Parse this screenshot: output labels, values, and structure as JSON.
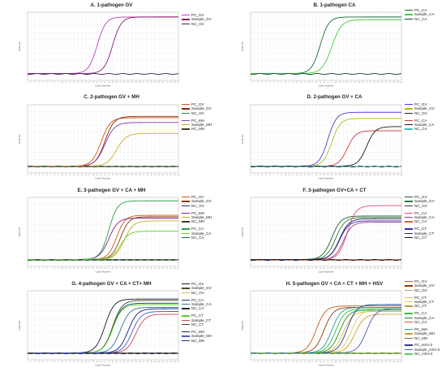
{
  "chart_data": [
    {
      "type": "line",
      "title": "A. 1-pathogen GV",
      "xlabel": "Cycle Number",
      "ylabel": "Delta Rn",
      "xlim": [
        1,
        40
      ],
      "ylim": [
        -1,
        9
      ],
      "series": [
        {
          "name": "PC_GV",
          "color": "#c040c0",
          "ct": 19,
          "plateau": 8.3,
          "rate": 0.45
        },
        {
          "name": "Sample_GV",
          "color": "#8a1f70",
          "ct": 23,
          "plateau": 8.3,
          "rate": 0.45
        },
        {
          "name": "NC_GV",
          "color": "#402060",
          "ct": null,
          "plateau": 0,
          "rate": 0
        }
      ]
    },
    {
      "type": "line",
      "title": "B. 1-pathogen CA",
      "xlabel": "Cycle Number",
      "ylabel": "Delta Rn",
      "xlim": [
        1,
        40
      ],
      "ylim": [
        -1,
        9
      ],
      "series": [
        {
          "name": "PC_CA",
          "color": "#1c6e3c",
          "ct": 19,
          "plateau": 8.3,
          "rate": 0.45
        },
        {
          "name": "Sample_CA",
          "color": "#3ccf3c",
          "ct": 22,
          "plateau": 7.9,
          "rate": 0.4
        },
        {
          "name": "NC_CA",
          "color": "#0e4a2a",
          "ct": null,
          "plateau": 0,
          "rate": 0
        }
      ]
    },
    {
      "type": "line",
      "title": "C. 2-pathogen GV + MH",
      "xlabel": "Cycle Number",
      "ylabel": "Delta Rn",
      "xlim": [
        1,
        40
      ],
      "ylim": [
        -1,
        9
      ],
      "series": [
        {
          "name": "PC_GV",
          "color": "#cc5a14",
          "ct": 20,
          "plateau": 7.1,
          "rate": 0.42
        },
        {
          "name": "Sample_GV",
          "color": "#8c2a10",
          "ct": 21,
          "plateau": 7.3,
          "rate": 0.42
        },
        {
          "name": "NC_GV",
          "color": "#2a8a4a",
          "ct": null,
          "plateau": 0,
          "rate": 0
        },
        {
          "name": "PC_MH",
          "color": "#8a3aaa",
          "ct": 21,
          "plateau": 6.4,
          "rate": 0.4
        },
        {
          "name": "Sample_MH",
          "color": "#c8b020",
          "ct": 24,
          "plateau": 4.8,
          "rate": 0.4
        },
        {
          "name": "NC_MH",
          "color": "#4a3a2a",
          "ct": null,
          "plateau": 0,
          "rate": 0
        }
      ]
    },
    {
      "type": "line",
      "title": "D. 2-pathogen GV + CA",
      "xlabel": "Cycle Number",
      "ylabel": "Delta Rn",
      "xlim": [
        1,
        40
      ],
      "ylim": [
        -1,
        9
      ],
      "series": [
        {
          "name": "PC_GV",
          "color": "#5a3acc",
          "ct": 21,
          "plateau": 7.9,
          "rate": 0.45
        },
        {
          "name": "Sample_GV",
          "color": "#b8b820",
          "ct": 22,
          "plateau": 7.0,
          "rate": 0.45
        },
        {
          "name": "NC_GV",
          "color": "#222222",
          "ct": null,
          "plateau": 0,
          "rate": 0
        },
        {
          "name": "PC_CA",
          "color": "#cc3a3a",
          "ct": 26,
          "plateau": 5.2,
          "rate": 0.45
        },
        {
          "name": "Sample_CA",
          "color": "#1a1a1a",
          "ct": 31,
          "plateau": 5.8,
          "rate": 0.45
        },
        {
          "name": "NC_CA",
          "color": "#3ac0c0",
          "ct": null,
          "plateau": 0,
          "rate": 0
        }
      ]
    },
    {
      "type": "line",
      "title": "E. 3-pathogen GV + CA + MH",
      "xlabel": "Cycle Number",
      "ylabel": "Delta Rn",
      "xlim": [
        1,
        40
      ],
      "ylim": [
        -1,
        9
      ],
      "series": [
        {
          "name": "PC_GV",
          "color": "#c85a14",
          "ct": 24,
          "plateau": 6.4,
          "rate": 0.45
        },
        {
          "name": "Sample_GV",
          "color": "#8a3a0a",
          "ct": 25,
          "plateau": 6.2,
          "rate": 0.45
        },
        {
          "name": "NC_GV",
          "color": "#2a2a6a",
          "ct": null,
          "plateau": 0,
          "rate": 0
        },
        {
          "name": "PC_MH",
          "color": "#8a1a8a",
          "ct": 22,
          "plateau": 6.0,
          "rate": 0.42
        },
        {
          "name": "Sample_MH",
          "color": "#c8b020",
          "ct": 26,
          "plateau": 5.6,
          "rate": 0.42
        },
        {
          "name": "NC_MH",
          "color": "#4a3a2a",
          "ct": null,
          "plateau": 0,
          "rate": 0
        },
        {
          "name": "PC_CA",
          "color": "#2aa04a",
          "ct": 22,
          "plateau": 8.5,
          "rate": 0.45
        },
        {
          "name": "Sample_CA",
          "color": "#6ad02a",
          "ct": 25,
          "plateau": 4.1,
          "rate": 0.45
        },
        {
          "name": "NC_CA",
          "color": "#1a6a3a",
          "ct": null,
          "plateau": 0,
          "rate": 0
        }
      ]
    },
    {
      "type": "line",
      "title": "F. 3-pathogen GV+CA + CT",
      "xlabel": "Cycle Number",
      "ylabel": "Delta Rn",
      "xlim": [
        1,
        40
      ],
      "ylim": [
        -1,
        9
      ],
      "series": [
        {
          "name": "PC_GV",
          "color": "#1a5a2a",
          "ct": 22,
          "plateau": 6.3,
          "rate": 0.42
        },
        {
          "name": "Sample_GV",
          "color": "#2a7a3a",
          "ct": 23,
          "plateau": 6.1,
          "rate": 0.42
        },
        {
          "name": "NC_GV",
          "color": "#3a3a3a",
          "ct": null,
          "plateau": 0,
          "rate": 0
        },
        {
          "name": "PC_CA",
          "color": "#e0507a",
          "ct": 26,
          "plateau": 7.8,
          "rate": 0.45
        },
        {
          "name": "Sample_CA",
          "color": "#aa3a8a",
          "ct": 25,
          "plateau": 5.4,
          "rate": 0.45
        },
        {
          "name": "NC_CA",
          "color": "#cc6a2a",
          "ct": null,
          "plateau": 0,
          "rate": 0
        },
        {
          "name": "PC_CT",
          "color": "#3a2aaa",
          "ct": 24,
          "plateau": 5.6,
          "rate": 0.42
        },
        {
          "name": "Sample_CT",
          "color": "#2a2a5a",
          "ct": 24,
          "plateau": 5.9,
          "rate": 0.42
        },
        {
          "name": "NC_CT",
          "color": "#1a1a1a",
          "ct": null,
          "plateau": 0,
          "rate": 0
        }
      ]
    },
    {
      "type": "line",
      "title": "G. 4-pathogen GV + CA + CT+ MH",
      "xlabel": "Cycle Number",
      "ylabel": "Delta Rn",
      "xlim": [
        1,
        40
      ],
      "ylim": [
        -1,
        9
      ],
      "series": [
        {
          "name": "PC_GV",
          "color": "#1a1a2a",
          "ct": 21,
          "plateau": 7.8,
          "rate": 0.42
        },
        {
          "name": "Sample_GV",
          "color": "#4a4a1a",
          "ct": 23,
          "plateau": 7.6,
          "rate": 0.42
        },
        {
          "name": "NC_GV",
          "color": "#d0c050",
          "ct": null,
          "plateau": 0,
          "rate": 0
        },
        {
          "name": "PC_CA",
          "color": "#1a3a7a",
          "ct": 23,
          "plateau": 7.2,
          "rate": 0.42
        },
        {
          "name": "Sample_CA",
          "color": "#2a7a8a",
          "ct": 25,
          "plateau": 6.6,
          "rate": 0.42
        },
        {
          "name": "NC_CA",
          "color": "#2a2a2a",
          "ct": null,
          "plateau": 0,
          "rate": 0
        },
        {
          "name": "PC_CT",
          "color": "#5ad02a",
          "ct": 23,
          "plateau": 7.0,
          "rate": 0.42
        },
        {
          "name": "Sample_CT",
          "color": "#cc4a4a",
          "ct": 29,
          "plateau": 5.6,
          "rate": 0.42
        },
        {
          "name": "NC_CT",
          "color": "#3a3a3a",
          "ct": null,
          "plateau": 0,
          "rate": 0
        },
        {
          "name": "PC_MH",
          "color": "#1a1a8a",
          "ct": 27,
          "plateau": 6.4,
          "rate": 0.42
        },
        {
          "name": "Sample_MH",
          "color": "#4a5acc",
          "ct": 28,
          "plateau": 6.0,
          "rate": 0.42
        },
        {
          "name": "NC_MH",
          "color": "#2a2a4a",
          "ct": null,
          "plateau": 0,
          "rate": 0
        }
      ]
    },
    {
      "type": "line",
      "title": "H. 5-pathogen GV + CA + CT + MH + HSV",
      "xlabel": "Cycle Number",
      "ylabel": "Delta Rn",
      "xlim": [
        1,
        40
      ],
      "ylim": [
        -1,
        9
      ],
      "series": [
        {
          "name": "PC_GV",
          "color": "#cc5a14",
          "ct": 18,
          "plateau": 6.8,
          "rate": 0.42
        },
        {
          "name": "Sample_GV",
          "color": "#8a3a0a",
          "ct": 20,
          "plateau": 6.6,
          "rate": 0.42
        },
        {
          "name": "NC_GV",
          "color": "#c8a060",
          "ct": null,
          "plateau": 0,
          "rate": 0
        },
        {
          "name": "PC_CT",
          "color": "#d8c030",
          "ct": 25,
          "plateau": 6.0,
          "rate": 0.42
        },
        {
          "name": "Sample_CT",
          "color": "#e0d060",
          "ct": 27,
          "plateau": 6.2,
          "rate": 0.42
        },
        {
          "name": "NC_CT",
          "color": "#b0a040",
          "ct": null,
          "plateau": 0,
          "rate": 0
        },
        {
          "name": "PC_CA",
          "color": "#3ac03a",
          "ct": 23,
          "plateau": 6.4,
          "rate": 0.42
        },
        {
          "name": "Sample_CA",
          "color": "#2a8a2a",
          "ct": 24,
          "plateau": 6.2,
          "rate": 0.42
        },
        {
          "name": "NC_CA",
          "color": "#cc5a2a",
          "ct": null,
          "plateau": 0,
          "rate": 0
        },
        {
          "name": "PC_MH",
          "color": "#2aa0a0",
          "ct": 22,
          "plateau": 6.6,
          "rate": 0.42
        },
        {
          "name": "Sample_MH",
          "color": "#d0a030",
          "ct": 28,
          "plateau": 5.6,
          "rate": 0.42
        },
        {
          "name": "NC_MH",
          "color": "#8a6a2a",
          "ct": null,
          "plateau": 0,
          "rate": 0
        },
        {
          "name": "PC_HSV-2",
          "color": "#2a3a8a",
          "ct": 26,
          "plateau": 7.0,
          "rate": 0.42
        },
        {
          "name": "Sample_HSV-2",
          "color": "#4a5abb",
          "ct": 31,
          "plateau": 6.4,
          "rate": 0.42
        },
        {
          "name": "NC_HSV-2",
          "color": "#5ad05a",
          "ct": null,
          "plateau": 0,
          "rate": 0
        }
      ]
    }
  ]
}
